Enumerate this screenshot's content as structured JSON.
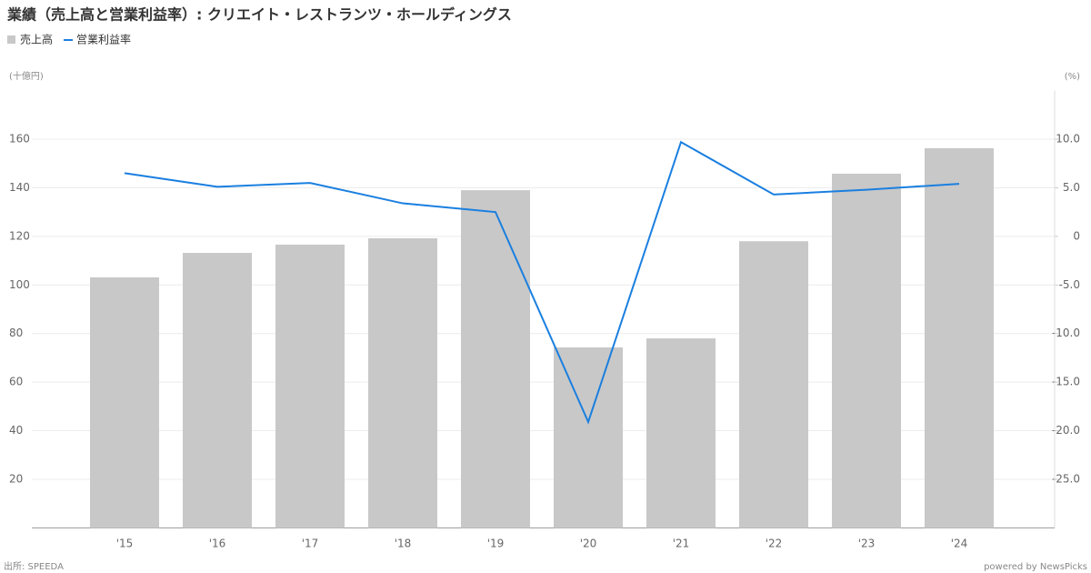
{
  "chart_data": {
    "type": "bar-line",
    "title": "業績（売上高と営業利益率）: クリエイト・レストランツ・ホールディングス",
    "y_label": "(十億円)",
    "y2_label": "(%)",
    "source": "出所: SPEEDA",
    "credit": "powered by NewsPicks",
    "categories": [
      "'15",
      "'16",
      "'17",
      "'18",
      "'19",
      "'20",
      "'21",
      "'22",
      "'23",
      "'24"
    ],
    "series": [
      {
        "name": "売上高",
        "color": "#c8c8c8",
        "kind": "bar",
        "values": [
          103.1,
          113.2,
          116.6,
          119.2,
          139,
          74.3,
          78,
          118,
          145.8,
          156.3
        ]
      },
      {
        "name": "営業利益率",
        "color": "#1a7fe0",
        "kind": "line",
        "axis": "y2",
        "values": [
          6.5,
          5.1,
          5.5,
          3.4,
          2.5,
          -19.1,
          9.7,
          4.3,
          4.8,
          5.4
        ]
      }
    ],
    "ylim": [
      0,
      180
    ],
    "yticks": [
      20,
      40,
      60,
      80,
      100,
      120,
      140,
      160
    ],
    "y2lim": [
      -30,
      15
    ],
    "y2ticks": [
      {
        "value": -25,
        "label": "-25.0"
      },
      {
        "value": -20,
        "label": "-20.0"
      },
      {
        "value": -15,
        "label": "-15.0"
      },
      {
        "value": -10,
        "label": "-10.0"
      },
      {
        "value": -5,
        "label": "-5.0"
      },
      0,
      {
        "value": 5,
        "label": "5.0"
      },
      {
        "value": 10,
        "label": "10.0"
      }
    ],
    "grid": true
  }
}
